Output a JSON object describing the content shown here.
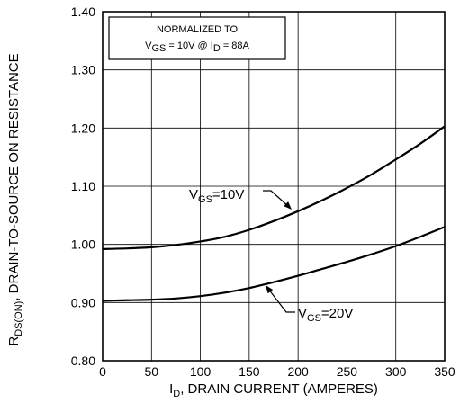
{
  "chart_data": {
    "type": "line",
    "xlabel": {
      "main": "I",
      "sub": "D",
      "rest": ", DRAIN CURRENT (AMPERES)"
    },
    "ylabel": {
      "main": "R",
      "sub": "DS(ON)",
      "rest": ", DRAIN-TO-SOURCE ON RESISTANCE"
    },
    "xlim": [
      0,
      350
    ],
    "ylim": [
      0.8,
      1.4
    ],
    "xticks": [
      0,
      50,
      100,
      150,
      200,
      250,
      300,
      350
    ],
    "yticks": [
      "0.80",
      "0.90",
      "1.00",
      "1.10",
      "1.20",
      "1.30",
      "1.40"
    ],
    "grid": true,
    "note": {
      "line1": "NORMALIZED TO",
      "line2": {
        "v": "V",
        "vsub": "GS",
        "vrest": " = 10V  @  I",
        "isub": "D",
        "irest": " = 88A"
      }
    },
    "series": [
      {
        "label": {
          "main": "V",
          "sub": "GS",
          "rest": "=10V"
        },
        "x": [
          0,
          25,
          50,
          75,
          100,
          125,
          150,
          175,
          200,
          225,
          250,
          275,
          300,
          325,
          350
        ],
        "y": [
          0.992,
          0.993,
          0.995,
          0.999,
          1.005,
          1.013,
          1.025,
          1.04,
          1.057,
          1.076,
          1.097,
          1.12,
          1.146,
          1.173,
          1.203
        ]
      },
      {
        "label": {
          "main": "V",
          "sub": "GS",
          "rest": "=20V"
        },
        "x": [
          0,
          25,
          50,
          75,
          100,
          125,
          150,
          175,
          200,
          225,
          250,
          275,
          300,
          325,
          350
        ],
        "y": [
          0.903,
          0.904,
          0.905,
          0.907,
          0.911,
          0.917,
          0.925,
          0.935,
          0.946,
          0.958,
          0.97,
          0.983,
          0.997,
          1.013,
          1.03
        ]
      }
    ]
  }
}
